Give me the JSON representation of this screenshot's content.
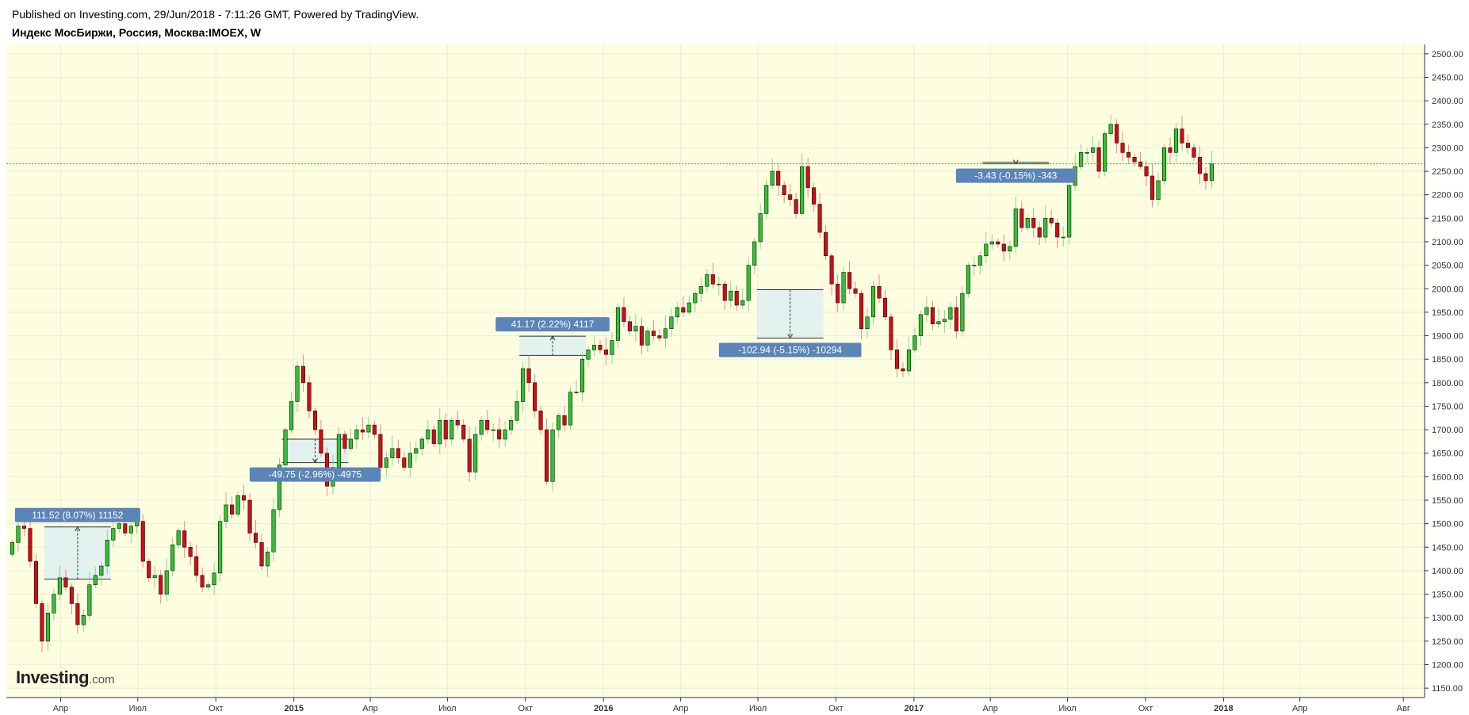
{
  "header": {
    "published": "Published on Investing.com, 29/Jun/2018 - 7:11:26 GMT, Powered by TradingView.",
    "symbol_title": "Индекс МосБиржи, Россия, Москва:IMOEX, W"
  },
  "logo": {
    "brand": "Investing",
    "suffix": ".com"
  },
  "colors": {
    "background": "#fdfde0",
    "up": "#2ec52e",
    "down": "#d40b14",
    "border": "#333333",
    "current_line": "#3bb04a",
    "measure_fill": "#d9ecf4",
    "measure_label": "#5b84b8"
  },
  "chart_data": {
    "type": "candlestick",
    "interval": "W",
    "y_axis": {
      "position": "right",
      "min": 1150,
      "max": 2500,
      "ticks": [
        "1150.00",
        "1200.00",
        "1250.00",
        "1300.00",
        "1350.00",
        "1400.00",
        "1450.00",
        "1500.00",
        "1550.00",
        "1600.00",
        "1650.00",
        "1700.00",
        "1750.00",
        "1800.00",
        "1850.00",
        "1900.00",
        "1950.00",
        "2000.00",
        "2050.00",
        "2100.00",
        "2150.00",
        "2200.00",
        "2250.00",
        "2300.00",
        "2350.00",
        "2400.00",
        "2450.00",
        "2500.00"
      ]
    },
    "x_axis": {
      "labels": [
        {
          "text": "Апр",
          "date": "2014-04-01"
        },
        {
          "text": "Июл",
          "date": "2014-07-01"
        },
        {
          "text": "Окт",
          "date": "2014-10-01"
        },
        {
          "text": "2015",
          "date": "2015-01-01",
          "bold": true
        },
        {
          "text": "Апр",
          "date": "2015-04-01"
        },
        {
          "text": "Июл",
          "date": "2015-07-01"
        },
        {
          "text": "Окт",
          "date": "2015-10-01"
        },
        {
          "text": "2016",
          "date": "2016-01-01",
          "bold": true
        },
        {
          "text": "Апр",
          "date": "2016-04-01"
        },
        {
          "text": "Июл",
          "date": "2016-07-01"
        },
        {
          "text": "Окт",
          "date": "2016-10-01"
        },
        {
          "text": "2017",
          "date": "2017-01-01",
          "bold": true
        },
        {
          "text": "Апр",
          "date": "2017-04-01"
        },
        {
          "text": "Июл",
          "date": "2017-07-01"
        },
        {
          "text": "Окт",
          "date": "2017-10-01"
        },
        {
          "text": "2018",
          "date": "2018-01-01",
          "bold": true
        },
        {
          "text": "Апр",
          "date": "2018-04-01"
        },
        {
          "text": "Авг",
          "date": "2018-08-01"
        }
      ]
    },
    "current_price": 2266,
    "closes": [
      1460,
      1495,
      1490,
      1420,
      1330,
      1250,
      1310,
      1350,
      1385,
      1365,
      1330,
      1285,
      1305,
      1370,
      1390,
      1410,
      1465,
      1490,
      1500,
      1480,
      1495,
      1505,
      1420,
      1385,
      1390,
      1350,
      1400,
      1455,
      1485,
      1450,
      1430,
      1390,
      1365,
      1370,
      1395,
      1505,
      1540,
      1520,
      1560,
      1550,
      1480,
      1460,
      1410,
      1440,
      1530,
      1625,
      1700,
      1760,
      1835,
      1800,
      1740,
      1700,
      1650,
      1580,
      1620,
      1690,
      1660,
      1680,
      1700,
      1695,
      1710,
      1690,
      1620,
      1640,
      1660,
      1640,
      1620,
      1650,
      1660,
      1680,
      1700,
      1670,
      1720,
      1680,
      1720,
      1710,
      1680,
      1610,
      1690,
      1720,
      1700,
      1700,
      1680,
      1700,
      1720,
      1760,
      1830,
      1800,
      1740,
      1700,
      1590,
      1700,
      1730,
      1710,
      1780,
      1780,
      1850,
      1870,
      1880,
      1870,
      1860,
      1890,
      1960,
      1930,
      1910,
      1920,
      1880,
      1910,
      1900,
      1895,
      1915,
      1940,
      1960,
      1950,
      1970,
      1990,
      2005,
      2030,
      2010,
      2010,
      1975,
      1995,
      1965,
      1975,
      2050,
      2100,
      2160,
      2220,
      2250,
      2220,
      2200,
      2190,
      2160,
      2260,
      2215,
      2180,
      2120,
      2070,
      2010,
      1970,
      2035,
      2000,
      1990,
      1915,
      1940,
      2005,
      1980,
      1940,
      1870,
      1830,
      1825,
      1870,
      1900,
      1945,
      1960,
      1925,
      1930,
      1935,
      1960,
      1910,
      1990,
      2050,
      2050,
      2070,
      2095,
      2100,
      2095,
      2080,
      2090,
      2170,
      2130,
      2150,
      2130,
      2110,
      2150,
      2140,
      2110,
      2110,
      2220,
      2260,
      2290,
      2290,
      2300,
      2250,
      2330,
      2350,
      2310,
      2290,
      2280,
      2270,
      2260,
      2240,
      2190,
      2230,
      2300,
      2290,
      2340,
      2310,
      2300,
      2280,
      2245,
      2230,
      2266
    ],
    "measurements": [
      {
        "label": "111.52 (8.07%) 11152",
        "from": 6,
        "to": 16,
        "start_price": 1382,
        "end_price": 1493,
        "label_pos": "above"
      },
      {
        "label": "-49.75 (-2.96%) -4975",
        "from": 46,
        "to": 56,
        "start_price": 1680,
        "end_price": 1630,
        "label_pos": "below"
      },
      {
        "label": "41.17 (2.22%) 4117",
        "from": 86,
        "to": 96,
        "start_price": 1858,
        "end_price": 1899,
        "label_pos": "above"
      },
      {
        "label": "-102.94 (-5.15%) -10294",
        "from": 126,
        "to": 136,
        "start_price": 1998,
        "end_price": 1895,
        "label_pos": "below"
      },
      {
        "label": "-3.43 (-0.15%) -343",
        "from": 164,
        "to": 174,
        "start_price": 2269,
        "end_price": 2266,
        "label_pos": "below"
      }
    ]
  }
}
